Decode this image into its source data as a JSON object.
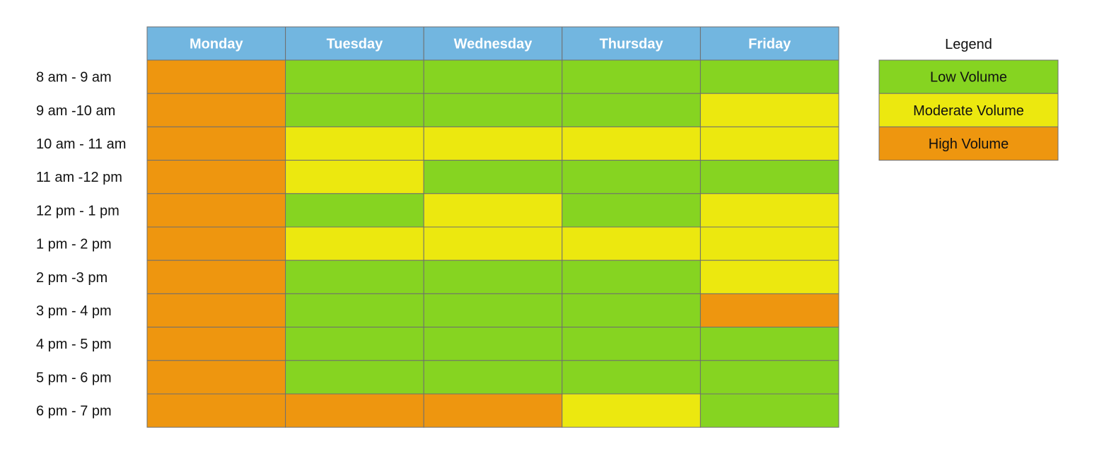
{
  "chart_data": {
    "type": "heatmap",
    "columns": [
      "Monday",
      "Tuesday",
      "Wednesday",
      "Thursday",
      "Friday"
    ],
    "rows": [
      "8 am - 9 am",
      "9 am -10 am",
      "10 am - 11 am",
      "11 am -12 pm",
      "12 pm - 1 pm",
      "1 pm - 2 pm",
      "2 pm -3 pm",
      "3 pm - 4 pm",
      "4 pm - 5 pm",
      "5 pm - 6 pm",
      "6 pm - 7 pm"
    ],
    "values": [
      [
        "High Volume",
        "Low Volume",
        "Low Volume",
        "Low Volume",
        "Low Volume"
      ],
      [
        "High Volume",
        "Low Volume",
        "Low Volume",
        "Low Volume",
        "Moderate Volume"
      ],
      [
        "High Volume",
        "Moderate Volume",
        "Moderate Volume",
        "Moderate Volume",
        "Moderate Volume"
      ],
      [
        "High Volume",
        "Moderate Volume",
        "Low Volume",
        "Low Volume",
        "Low Volume"
      ],
      [
        "High Volume",
        "Low Volume",
        "Moderate Volume",
        "Low Volume",
        "Moderate Volume"
      ],
      [
        "High Volume",
        "Moderate Volume",
        "Moderate Volume",
        "Moderate Volume",
        "Moderate Volume"
      ],
      [
        "High Volume",
        "Low Volume",
        "Low Volume",
        "Low Volume",
        "Moderate Volume"
      ],
      [
        "High Volume",
        "Low Volume",
        "Low Volume",
        "Low Volume",
        "High Volume"
      ],
      [
        "High Volume",
        "Low Volume",
        "Low Volume",
        "Low Volume",
        "Low Volume"
      ],
      [
        "High Volume",
        "Low Volume",
        "Low Volume",
        "Low Volume",
        "Low Volume"
      ],
      [
        "High Volume",
        "High Volume",
        "High Volume",
        "Moderate Volume",
        "Low Volume"
      ]
    ],
    "legend": {
      "title": "Legend",
      "placement": "right",
      "items": [
        {
          "label": "Low Volume",
          "color": "#86d421"
        },
        {
          "label": "Moderate Volume",
          "color": "#ece80f"
        },
        {
          "label": "High Volume",
          "color": "#ee960f"
        }
      ]
    },
    "header_color": "#72b6e0",
    "grid_color": "#6f6f6f"
  }
}
